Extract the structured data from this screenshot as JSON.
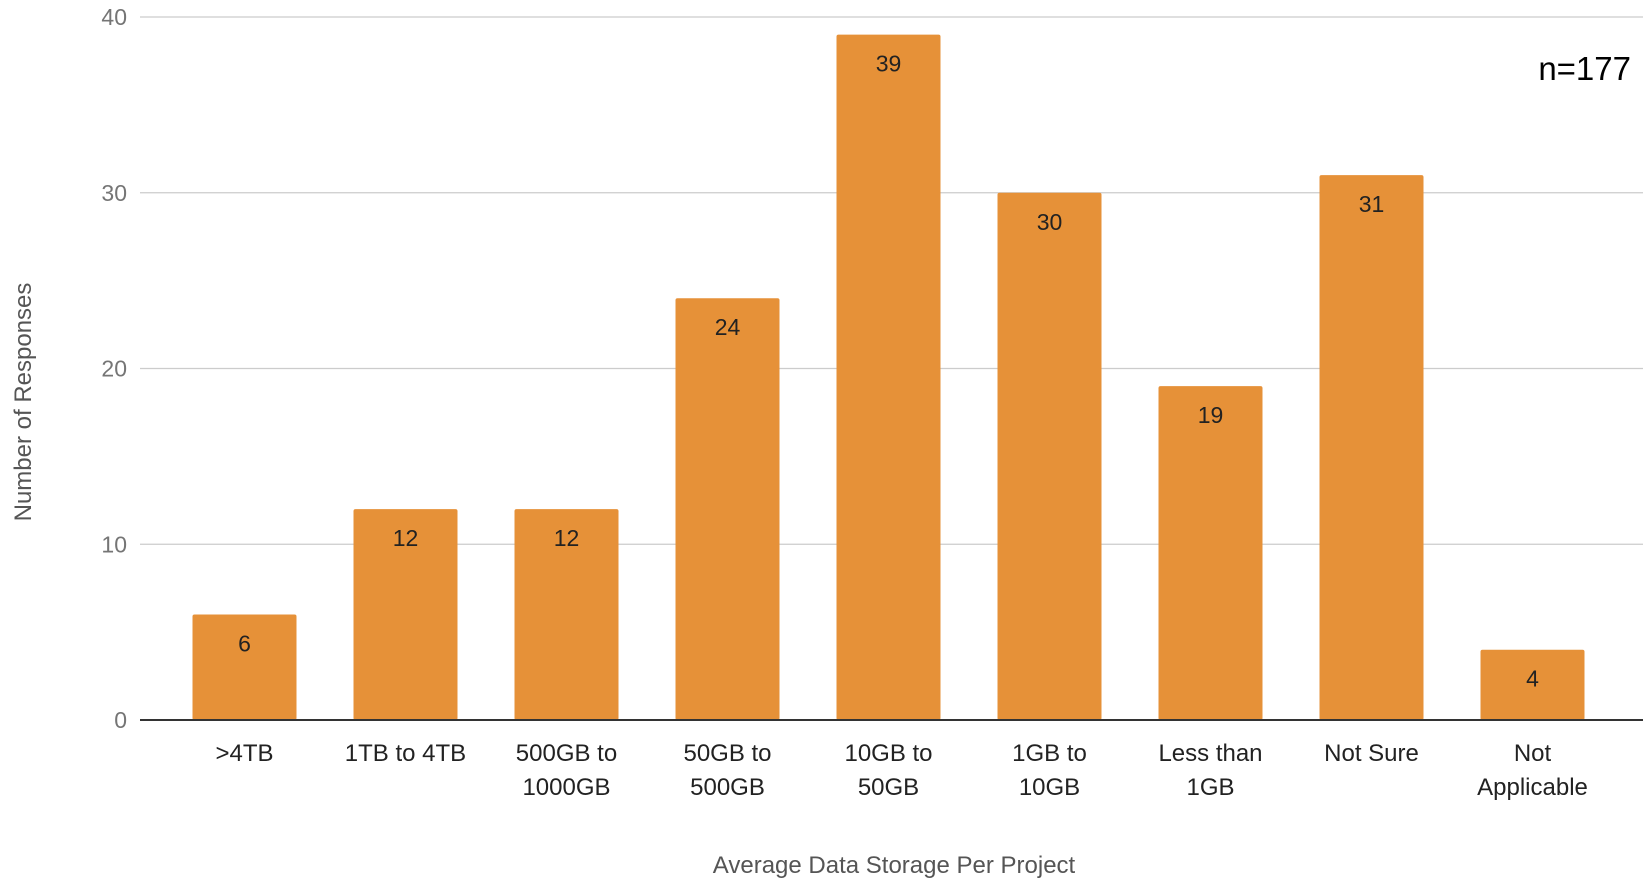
{
  "chart_data": {
    "type": "bar",
    "categories": [
      [
        ">4TB"
      ],
      [
        "1TB to 4TB"
      ],
      [
        "500GB to",
        "1000GB"
      ],
      [
        "50GB to",
        "500GB"
      ],
      [
        "10GB to",
        "50GB"
      ],
      [
        "1GB to",
        "10GB"
      ],
      [
        "Less than",
        "1GB"
      ],
      [
        "Not Sure"
      ],
      [
        "Not",
        "Applicable"
      ]
    ],
    "values": [
      6,
      12,
      12,
      24,
      39,
      30,
      19,
      31,
      4
    ],
    "xlabel": "Average Data Storage Per Project",
    "ylabel": "Number of Responses",
    "ylim": [
      0,
      40
    ],
    "yticks": [
      0,
      10,
      20,
      30,
      40
    ],
    "grid": true,
    "bar_color": "#e69138",
    "data_labels": true,
    "annotation": "n=177"
  }
}
